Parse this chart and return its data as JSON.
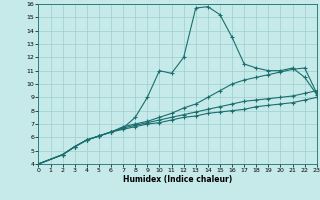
{
  "background_color": "#c6e9e9",
  "grid_color": "#9ecece",
  "line_color": "#1a6e6e",
  "xlabel": "Humidex (Indice chaleur)",
  "xlim": [
    0,
    23
  ],
  "ylim": [
    4,
    16
  ],
  "xticks": [
    0,
    1,
    2,
    3,
    4,
    5,
    6,
    7,
    8,
    9,
    10,
    11,
    12,
    13,
    14,
    15,
    16,
    17,
    18,
    19,
    20,
    21,
    22,
    23
  ],
  "yticks": [
    4,
    5,
    6,
    7,
    8,
    9,
    10,
    11,
    12,
    13,
    14,
    15,
    16
  ],
  "curve1_x": [
    0,
    2,
    3,
    4,
    5,
    6,
    7,
    8,
    9,
    10,
    11,
    12,
    13,
    14,
    15,
    16,
    17,
    18,
    19,
    20,
    21,
    22,
    23
  ],
  "curve1_y": [
    4.0,
    4.7,
    5.3,
    5.8,
    6.1,
    6.4,
    6.7,
    7.5,
    9.0,
    11.0,
    10.8,
    12.0,
    15.7,
    15.8,
    15.2,
    13.5,
    11.5,
    11.2,
    11.0,
    11.0,
    11.2,
    10.5,
    9.2
  ],
  "curve2_x": [
    0,
    2,
    3,
    4,
    5,
    6,
    7,
    8,
    9,
    10,
    11,
    12,
    13,
    14,
    15,
    16,
    17,
    18,
    19,
    20,
    21,
    22,
    23
  ],
  "curve2_y": [
    4.0,
    4.7,
    5.3,
    5.8,
    6.1,
    6.4,
    6.8,
    7.0,
    7.2,
    7.5,
    7.8,
    8.2,
    8.5,
    9.0,
    9.5,
    10.0,
    10.3,
    10.5,
    10.7,
    10.9,
    11.1,
    11.2,
    9.3
  ],
  "curve3_x": [
    0,
    2,
    3,
    4,
    5,
    6,
    7,
    8,
    9,
    10,
    11,
    12,
    13,
    14,
    15,
    16,
    17,
    18,
    19,
    20,
    21,
    22,
    23
  ],
  "curve3_y": [
    4.0,
    4.7,
    5.3,
    5.8,
    6.1,
    6.4,
    6.7,
    6.9,
    7.1,
    7.3,
    7.5,
    7.7,
    7.9,
    8.1,
    8.3,
    8.5,
    8.7,
    8.8,
    8.9,
    9.0,
    9.1,
    9.3,
    9.5
  ],
  "curve4_x": [
    0,
    2,
    3,
    4,
    5,
    6,
    7,
    8,
    9,
    10,
    11,
    12,
    13,
    14,
    15,
    16,
    17,
    18,
    19,
    20,
    21,
    22,
    23
  ],
  "curve4_y": [
    4.0,
    4.7,
    5.3,
    5.8,
    6.1,
    6.4,
    6.6,
    6.8,
    7.0,
    7.1,
    7.3,
    7.5,
    7.6,
    7.8,
    7.9,
    8.0,
    8.1,
    8.3,
    8.4,
    8.5,
    8.6,
    8.8,
    9.0
  ],
  "marker": "+",
  "markersize": 3,
  "linewidth": 0.8
}
